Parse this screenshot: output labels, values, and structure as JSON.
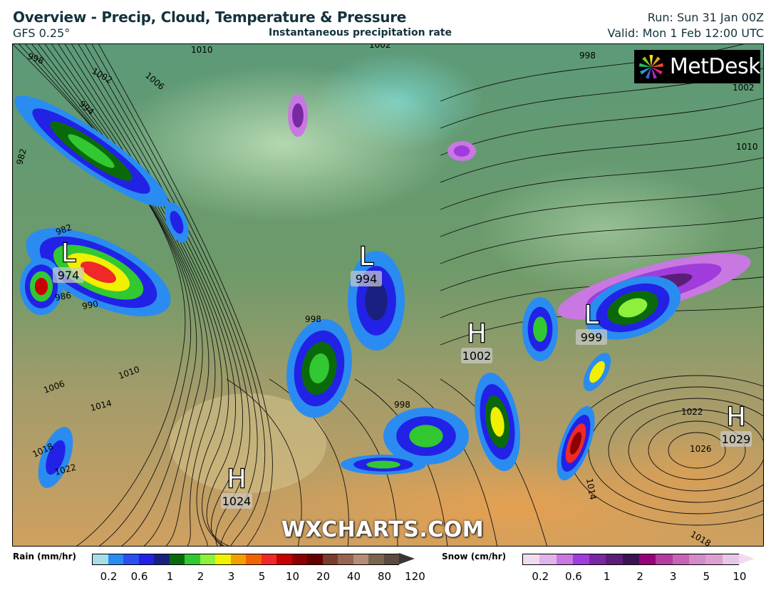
{
  "header": {
    "title": "Overview - Precip, Cloud, Temperature & Pressure",
    "model": "GFS 0.25°",
    "subtitle": "Instantaneous precipitation rate",
    "run": "Run: Sun 31 Jan 00Z",
    "valid": "Valid: Mon 1 Feb 12:00 UTC"
  },
  "branding": {
    "logo": "MetDesk",
    "watermark": "WXCHARTS.COM"
  },
  "map": {
    "pressure_centers": [
      {
        "type": "L",
        "value": "974"
      },
      {
        "type": "L",
        "value": "994"
      },
      {
        "type": "L",
        "value": "999"
      },
      {
        "type": "H",
        "value": "1002"
      },
      {
        "type": "H",
        "value": "1024"
      },
      {
        "type": "H",
        "value": "1029"
      }
    ],
    "isobar_labels": [
      "998",
      "1002",
      "1006",
      "1010",
      "994",
      "982",
      "982",
      "986",
      "990",
      "1010",
      "1006",
      "1014",
      "1018",
      "1022",
      "1002",
      "998",
      "1002",
      "1010",
      "1022",
      "1026",
      "1014",
      "1018",
      "998",
      "998"
    ]
  },
  "legend": {
    "rain": {
      "label": "Rain (mm/hr)",
      "colors": [
        "#a8dce6",
        "#2a8cf0",
        "#2c50f0",
        "#2222e6",
        "#1a2080",
        "#0a6a0a",
        "#32c832",
        "#8cf03c",
        "#f0f000",
        "#f0a000",
        "#f06400",
        "#f02828",
        "#c80000",
        "#8c0000",
        "#640000",
        "#7a3c2c",
        "#966450",
        "#b48c78",
        "#7a6450",
        "#5a4a40",
        "#3c3434"
      ],
      "ticks": [
        "0.2",
        "0.6",
        "1",
        "2",
        "3",
        "5",
        "10",
        "20",
        "40",
        "80",
        "120"
      ]
    },
    "snow": {
      "label": "Snow (cm/hr)",
      "colors": [
        "#f0dcf0",
        "#e0b4e8",
        "#c878e0",
        "#a03cdc",
        "#7828a0",
        "#5a1e78",
        "#3c1450",
        "#960078",
        "#b43ca0",
        "#c864b4",
        "#d28cc8",
        "#dca0d2",
        "#e6c8e6",
        "#f0dcf0"
      ],
      "ticks": [
        "0.2",
        "0.6",
        "1",
        "2",
        "3",
        "5",
        "10"
      ]
    }
  }
}
